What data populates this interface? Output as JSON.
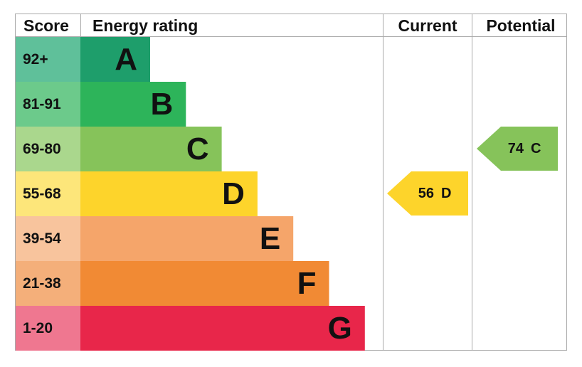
{
  "header": {
    "score": "Score",
    "rating": "Energy rating",
    "current": "Current",
    "potential": "Potential"
  },
  "bands": [
    {
      "score": "92+",
      "letter": "A",
      "color": "#1e9e6b",
      "light": "#5fc09a"
    },
    {
      "score": "81-91",
      "letter": "B",
      "color": "#2db45a",
      "light": "#6cca8b"
    },
    {
      "score": "69-80",
      "letter": "C",
      "color": "#86c35a",
      "light": "#aad78d"
    },
    {
      "score": "55-68",
      "letter": "D",
      "color": "#fdd42b",
      "light": "#fde67a"
    },
    {
      "score": "39-54",
      "letter": "E",
      "color": "#f5a56a",
      "light": "#f8c49d"
    },
    {
      "score": "21-38",
      "letter": "F",
      "color": "#f18a34",
      "light": "#f4af7a"
    },
    {
      "score": "1-20",
      "letter": "G",
      "color": "#e8264a",
      "light": "#ef7790"
    }
  ],
  "current": {
    "value": 56,
    "letter": "D"
  },
  "potential": {
    "value": 74,
    "letter": "C"
  }
}
